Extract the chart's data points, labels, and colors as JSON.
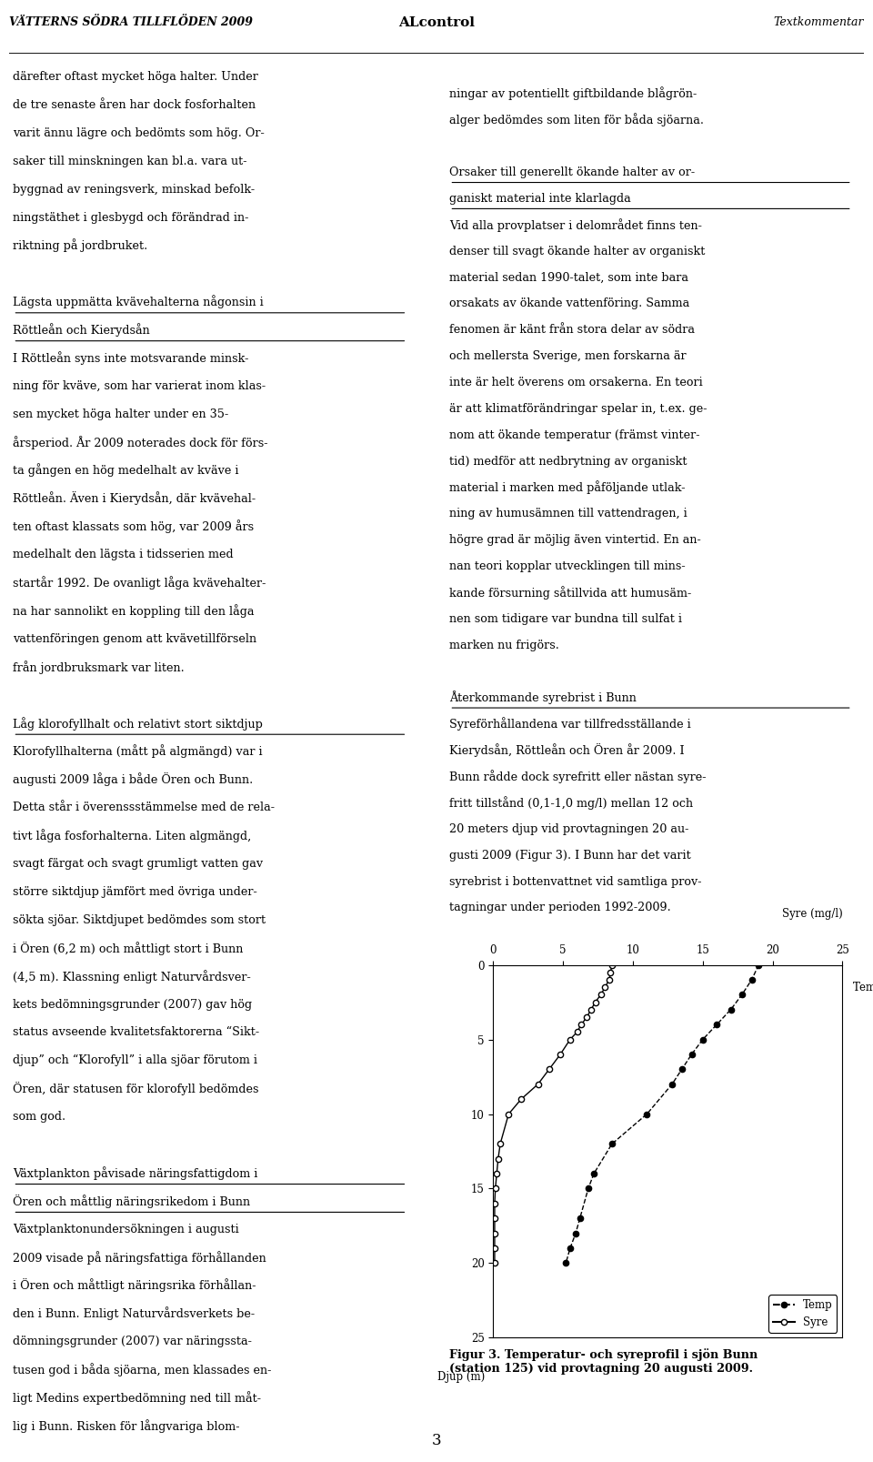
{
  "header_left": "VÄTTERNS SÖDRA TILLFLÖDEN 2009",
  "header_center": "ALcontrol",
  "header_right": "Textkommentar",
  "fig_caption": "Figur 3. Temperatur- och syreprofil i sjön Bunn\n(station 125) vid provtagning 20 augusti 2009.",
  "syre_label": "Syre (mg/l)",
  "temp_label": "Temp (°C)",
  "djup_label": "Djup (m)",
  "xlim": [
    0,
    25
  ],
  "ylim": [
    25,
    0
  ],
  "yticks": [
    0,
    5,
    10,
    15,
    20,
    25
  ],
  "xticks": [
    0,
    5,
    10,
    15,
    20,
    25
  ],
  "syre_depth": [
    0,
    0.5,
    1,
    1.5,
    2,
    2.5,
    3,
    3.5,
    4,
    4.5,
    5,
    6,
    7,
    8,
    9,
    10,
    12,
    13,
    14,
    15,
    16,
    17,
    18,
    19,
    20
  ],
  "syre_values": [
    8.5,
    8.4,
    8.3,
    8.0,
    7.7,
    7.3,
    7.0,
    6.7,
    6.3,
    6.0,
    5.5,
    4.8,
    4.0,
    3.2,
    2.0,
    1.1,
    0.5,
    0.35,
    0.25,
    0.15,
    0.1,
    0.1,
    0.1,
    0.1,
    0.1
  ],
  "temp_depth": [
    0,
    1,
    2,
    3,
    4,
    5,
    6,
    7,
    8,
    10,
    12,
    14,
    15,
    17,
    18,
    19,
    20
  ],
  "temp_values": [
    19.0,
    18.5,
    17.8,
    17.0,
    16.0,
    15.0,
    14.2,
    13.5,
    12.8,
    11.0,
    8.5,
    7.2,
    6.8,
    6.2,
    5.9,
    5.5,
    5.2
  ],
  "page_number": "3",
  "left_col_lines": [
    {
      "text": "därefter oftast mycket höga halter. Under",
      "style": "normal"
    },
    {
      "text": "de tre senaste åren har dock fosforhalten",
      "style": "normal"
    },
    {
      "text": "varit ännu lägre och bedömts som hög. Or-",
      "style": "normal"
    },
    {
      "text": "saker till minskningen kan bl.a. vara ut-",
      "style": "normal"
    },
    {
      "text": "byggnad av reningsverk, minskad befolk-",
      "style": "normal"
    },
    {
      "text": "ningstäthet i glesbygd och förändrad in-",
      "style": "normal"
    },
    {
      "text": "riktning på jordbruket.",
      "style": "normal"
    },
    {
      "text": "",
      "style": "normal"
    },
    {
      "text": "Lägsta uppmätta kvävehalterna någonsin i",
      "style": "underline"
    },
    {
      "text": "Röttleån och Kierydsån",
      "style": "underline"
    },
    {
      "text": "I Röttleån syns inte motsvarande minsk-",
      "style": "normal"
    },
    {
      "text": "ning för kväve, som har varierat inom klas-",
      "style": "normal"
    },
    {
      "text": "sen mycket höga halter under en 35-",
      "style": "normal"
    },
    {
      "text": "årsperiod. År 2009 noterades dock för förs-",
      "style": "normal"
    },
    {
      "text": "ta gången en hög medelhalt av kväve i",
      "style": "normal"
    },
    {
      "text": "Röttleån. Även i Kierydsån, där kvävehal-",
      "style": "normal"
    },
    {
      "text": "ten oftast klassats som hög, var 2009 års",
      "style": "normal"
    },
    {
      "text": "medelhalt den lägsta i tidsserien med",
      "style": "normal"
    },
    {
      "text": "startår 1992. De ovanligt låga kvävehalter-",
      "style": "normal"
    },
    {
      "text": "na har sannolikt en koppling till den låga",
      "style": "normal"
    },
    {
      "text": "vattenföringen genom att kvävetillförseln",
      "style": "normal"
    },
    {
      "text": "från jordbruksmark var liten.",
      "style": "normal"
    },
    {
      "text": "",
      "style": "normal"
    },
    {
      "text": "Låg klorofyllhalt och relativt stort siktdjup",
      "style": "underline"
    },
    {
      "text": "Klorofyllhalterna (mått på algmängd) var i",
      "style": "normal"
    },
    {
      "text": "augusti 2009 låga i både Ören och Bunn.",
      "style": "normal"
    },
    {
      "text": "Detta står i överenssstämmelse med de rela-",
      "style": "normal"
    },
    {
      "text": "tivt låga fosforhalterna. Liten algmängd,",
      "style": "normal"
    },
    {
      "text": "svagt färgat och svagt grumligt vatten gav",
      "style": "normal"
    },
    {
      "text": "större siktdjup jämfört med övriga under-",
      "style": "normal"
    },
    {
      "text": "sökta sjöar. Siktdjupet bedömdes som stort",
      "style": "normal"
    },
    {
      "text": "i Ören (6,2 m) och måttligt stort i Bunn",
      "style": "normal"
    },
    {
      "text": "(4,5 m). Klassning enligt Naturvårdsver-",
      "style": "normal"
    },
    {
      "text": "kets bedömningsgrunder (2007) gav hög",
      "style": "normal"
    },
    {
      "text": "status avseende kvalitetsfaktorerna “Sikt-",
      "style": "normal"
    },
    {
      "text": "djup” och “Klorofyll” i alla sjöar förutom i",
      "style": "normal"
    },
    {
      "text": "Ören, där statusen för klorofyll bedömdes",
      "style": "normal"
    },
    {
      "text": "som god.",
      "style": "normal"
    },
    {
      "text": "",
      "style": "normal"
    },
    {
      "text": "Växtplankton påvisade näringsfattigdom i",
      "style": "underline"
    },
    {
      "text": "Ören och måttlig näringsrikedom i Bunn",
      "style": "underline"
    },
    {
      "text": "Växtplanktonundersökningen i augusti",
      "style": "normal"
    },
    {
      "text": "2009 visade på näringsfattiga förhållanden",
      "style": "normal"
    },
    {
      "text": "i Ören och måttligt näringsrika förhållan-",
      "style": "normal"
    },
    {
      "text": "den i Bunn. Enligt Naturvårdsverkets be-",
      "style": "normal"
    },
    {
      "text": "dömningsgrunder (2007) var näringssta-",
      "style": "normal"
    },
    {
      "text": "tusen god i båda sjöarna, men klassades en-",
      "style": "normal"
    },
    {
      "text": "ligt Medins expertbedömning ned till måt-",
      "style": "normal"
    },
    {
      "text": "lig i Bunn. Risken för långvariga blom-",
      "style": "normal"
    }
  ],
  "right_col_lines": [
    {
      "text": "ningar av potentiellt giftbildande blågrön-",
      "style": "normal"
    },
    {
      "text": "alger bedömdes som liten för båda sjöarna.",
      "style": "normal"
    },
    {
      "text": "",
      "style": "normal"
    },
    {
      "text": "Orsaker till generellt ökande halter av or-",
      "style": "underline"
    },
    {
      "text": "ganiskt material inte klarlagda",
      "style": "underline"
    },
    {
      "text": "Vid alla provplatser i delområdet finns ten-",
      "style": "normal"
    },
    {
      "text": "denser till svagt ökande halter av organiskt",
      "style": "normal"
    },
    {
      "text": "material sedan 1990-talet, som inte bara",
      "style": "normal"
    },
    {
      "text": "orsakats av ökande vattenföring. Samma",
      "style": "normal"
    },
    {
      "text": "fenomen är känt från stora delar av södra",
      "style": "normal"
    },
    {
      "text": "och mellersta Sverige, men forskarna är",
      "style": "normal"
    },
    {
      "text": "inte är helt överens om orsakerna. En teori",
      "style": "normal"
    },
    {
      "text": "är att klimatförändringar spelar in, t.ex. ge-",
      "style": "normal"
    },
    {
      "text": "nom att ökande temperatur (främst vinter-",
      "style": "normal"
    },
    {
      "text": "tid) medför att nedbrytning av organiskt",
      "style": "normal"
    },
    {
      "text": "material i marken med påföljande utlak-",
      "style": "normal"
    },
    {
      "text": "ning av humusämnen till vattendragen, i",
      "style": "normal"
    },
    {
      "text": "högre grad är möjlig även vintertid. En an-",
      "style": "normal"
    },
    {
      "text": "nan teori kopplar utvecklingen till mins-",
      "style": "normal"
    },
    {
      "text": "kande försurning såtillvida att humusäm-",
      "style": "normal"
    },
    {
      "text": "nen som tidigare var bundna till sulfat i",
      "style": "normal"
    },
    {
      "text": "marken nu frigörs.",
      "style": "normal"
    },
    {
      "text": "",
      "style": "normal"
    },
    {
      "text": "Återkommande syrebrist i Bunn",
      "style": "underline"
    },
    {
      "text": "Syreförhållandena var tillfredsställande i",
      "style": "normal"
    },
    {
      "text": "Kierydsån, Röttleån och Ören år 2009. I",
      "style": "normal"
    },
    {
      "text": "Bunn rådde dock syrefritt eller nästan syre-",
      "style": "normal"
    },
    {
      "text": "fritt tillstånd (0,1-1,0 mg/l) mellan 12 och",
      "style": "normal"
    },
    {
      "text": "20 meters djup vid provtagningen 20 au-",
      "style": "normal"
    },
    {
      "text": "gusti 2009 (Figur 3). I Bunn har det varit",
      "style": "normal"
    },
    {
      "text": "syrebrist i bottenvattnet vid samtliga prov-",
      "style": "normal"
    },
    {
      "text": "tagningar under perioden 1992-2009.",
      "style": "normal"
    }
  ]
}
